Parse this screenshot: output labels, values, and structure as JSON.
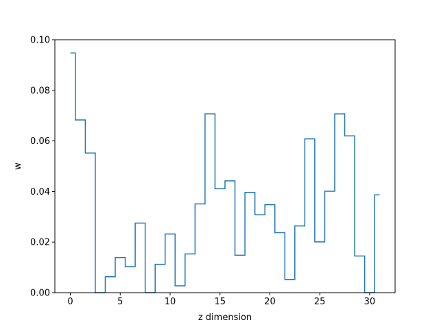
{
  "chart_data": {
    "type": "line",
    "style": "step",
    "xlabel": "z dimension",
    "ylabel": "w",
    "xlim": [
      -1.55,
      32.55
    ],
    "ylim": [
      0,
      0.1
    ],
    "x_ticks": [
      0,
      5,
      10,
      15,
      20,
      25,
      30
    ],
    "y_ticks": [
      0.0,
      0.02,
      0.04,
      0.06,
      0.08,
      0.1
    ],
    "y_tick_labels": [
      "0.00",
      "0.02",
      "0.04",
      "0.06",
      "0.08",
      "0.10"
    ],
    "grid": false,
    "series": [
      {
        "color": "#1f77b4",
        "x": [
          0,
          1,
          2,
          3,
          4,
          5,
          6,
          7,
          8,
          9,
          10,
          11,
          12,
          13,
          14,
          15,
          16,
          17,
          18,
          19,
          20,
          21,
          22,
          23,
          24,
          25,
          26,
          27,
          28,
          29,
          30,
          31
        ],
        "values": [
          0.0948,
          0.0683,
          0.0552,
          0.0,
          0.0063,
          0.0139,
          0.0103,
          0.0275,
          0.0,
          0.0112,
          0.0232,
          0.0027,
          0.0153,
          0.0351,
          0.0707,
          0.0411,
          0.0442,
          0.0148,
          0.0396,
          0.0308,
          0.0348,
          0.0237,
          0.0052,
          0.0264,
          0.0608,
          0.0201,
          0.0401,
          0.0707,
          0.062,
          0.0145,
          0.0,
          0.0387
        ]
      }
    ]
  }
}
